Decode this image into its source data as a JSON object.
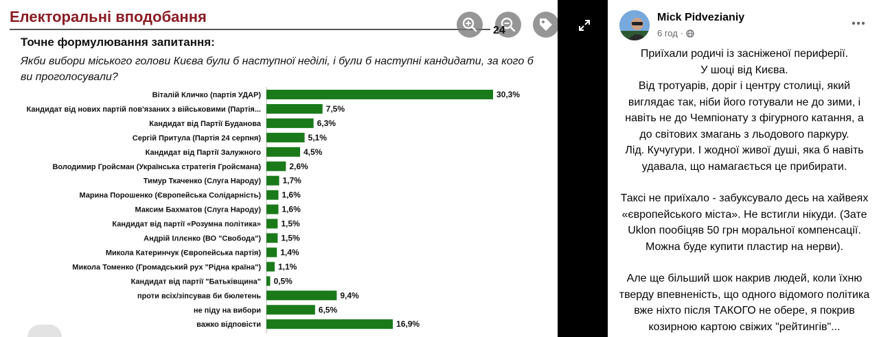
{
  "viewer": {
    "doc_title": "Електоральні вподобання",
    "question_heading": "Точне формулювання запитання:",
    "question_text": "Якби вибори міського голови Києва були б наступної неділі, і були б наступні кандидати, за кого б ви проголосували?",
    "zoom_level": "24",
    "controls": [
      "zoom-in-icon",
      "zoom-out-icon",
      "tag-icon",
      "fullscreen-icon"
    ]
  },
  "chart_data": {
    "type": "bar",
    "orientation": "horizontal",
    "categories": [
      "Віталій Кличко (партія УДАР)",
      "Кандидат від нових партій пов'язаних з військовими (Партія...",
      "Кандидат від Партії Буданова",
      "Сергій Притула (Партія 24 серпня)",
      "Кандидат від Партії Залужного",
      "Володимир Гройсман (Українська стратегія Гройсмана)",
      "Тимур Ткаченко (Слуга Народу)",
      "Марина Порошенко (Європейська Солідарність)",
      "Максим Бахматов (Слуга Народу)",
      "Кандидат від партії «Розумна політика»",
      "Андрій Іллєнко (ВО \"Свобода\")",
      "Микола Катеринчук (Європейська партія)",
      "Микола Томенко (Громадський рух \"Рідна країна\")",
      "Кандидат від партії \"Батьківщина\"",
      "проти всіх/зіпсував би бюлетень",
      "не піду на вибори",
      "важко відповісти"
    ],
    "values": [
      30.3,
      7.5,
      6.3,
      5.1,
      4.5,
      2.6,
      1.7,
      1.6,
      1.6,
      1.5,
      1.5,
      1.4,
      1.1,
      0.5,
      9.4,
      6.5,
      16.9
    ],
    "labels": [
      "30,3%",
      "7,5%",
      "6,3%",
      "5,1%",
      "4,5%",
      "2,6%",
      "1,7%",
      "1,6%",
      "1,6%",
      "1,5%",
      "1,5%",
      "1,4%",
      "1,1%",
      "0,5%",
      "9,4%",
      "6,5%",
      "16,9%"
    ],
    "bar_color": "#1a7a1a",
    "xlim": [
      0,
      30.3
    ]
  },
  "post": {
    "author": "Mick Pidvezianiy",
    "time": "6 год",
    "paragraphs": [
      [
        "Приїхали родичі із засніженої периферії.",
        "У шоці від Києва.",
        "Від тротуарів, доріг і центру столиці, який виглядає так, ніби його готували не до зими, і навіть не до Чемпіонату з фігурного катання, а до світових змагань з льодового паркуру.",
        "Лід. Кучугури. І жодної живої душі, яка б навіть удавала, що намагається це прибирати."
      ],
      [
        "Таксі не приїхало - забуксувало десь на хайвеях «європейського міста». Не встигли нікуди. (Зате Uklon пообіцяв 50 грн моральної компенсації. Можна буде купити пластир на нерви)."
      ],
      [
        "Але ще більший шок накрив людей, коли їхню тверду впевненість, що одного відомого політика вже ніхто після ТАКОГО не обере, я покрив козирною картою свіжих \"рейтингів\"..."
      ]
    ]
  }
}
